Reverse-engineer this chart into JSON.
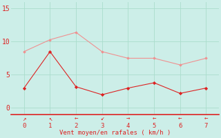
{
  "x": [
    0,
    1,
    2,
    3,
    4,
    5,
    6,
    7
  ],
  "y_rafales": [
    8.5,
    10.3,
    11.4,
    8.5,
    7.5,
    7.5,
    6.5,
    7.5
  ],
  "y_moyen": [
    3.0,
    8.5,
    3.2,
    2.0,
    3.0,
    3.8,
    2.2,
    3.0
  ],
  "xlabel": "Vent moyen/en rafales ( km/h )",
  "ylim": [
    -1,
    16
  ],
  "yticks": [
    0,
    5,
    10,
    15
  ],
  "xlim": [
    -0.5,
    7.5
  ],
  "bg_color": "#cceee8",
  "line_color_rafales": "#f09090",
  "line_color_moyen": "#dd2222",
  "grid_color": "#aaddcc",
  "axis_color": "#dd2222",
  "tick_color": "#dd2222",
  "xlabel_color": "#dd2222",
  "xlabel_fontsize": 6.5,
  "ytick_fontsize": 7,
  "xtick_fontsize": 6.5,
  "arrow_symbols": [
    "↗",
    "↖",
    "←",
    "↙",
    "→",
    "←",
    "←",
    "←"
  ]
}
